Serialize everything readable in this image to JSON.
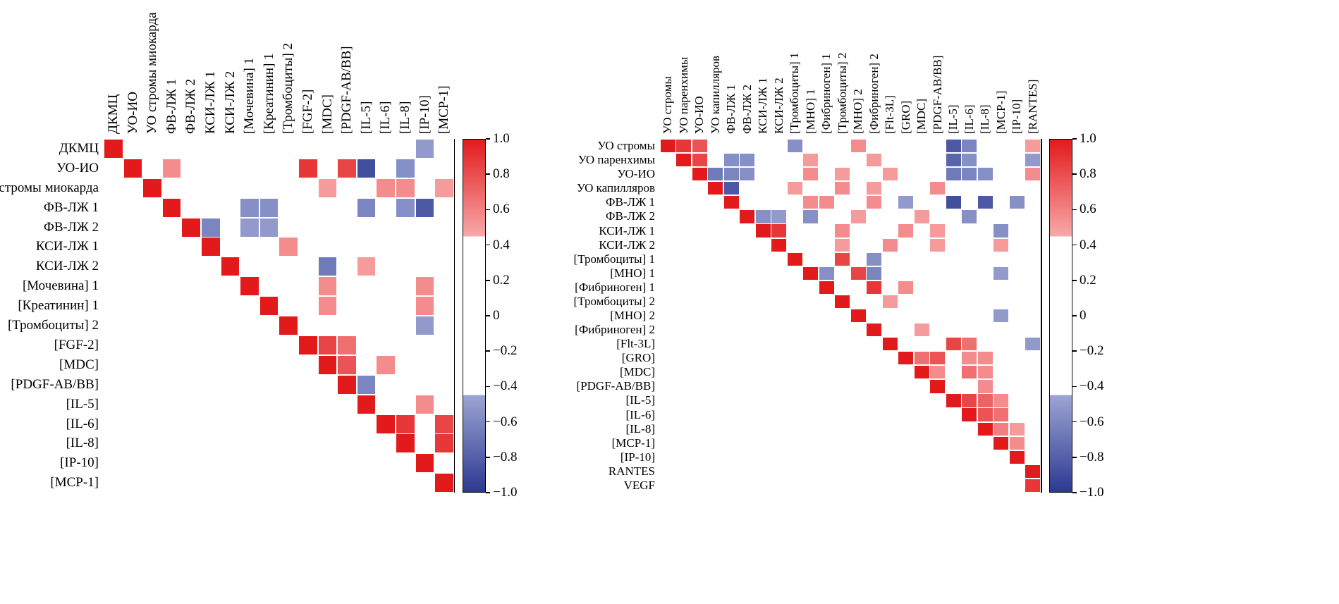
{
  "colors": {
    "positive_strong": "#e31a1c",
    "positive_weak": "#f8a9a9",
    "negative_weak": "#9da5d3",
    "negative_strong": "#2b3990",
    "background": "#ffffff",
    "frame": "#000000"
  },
  "colorbar": {
    "max": 1.0,
    "min": -1.0,
    "positive_threshold": 0.45,
    "negative_threshold": -0.45,
    "ticks": [
      "1.0",
      "0.8",
      "0.6",
      "0.4",
      "0.2",
      "0",
      "−0.2",
      "−0.4",
      "−0.6",
      "−0.8",
      "−1.0"
    ]
  },
  "chart_data": [
    {
      "type": "heatmap",
      "panel": "left",
      "title": "",
      "legend_position": "right-colorbar",
      "grid": false,
      "value_range": [
        -1,
        1
      ],
      "diagonal_value": 1.0,
      "variables": [
        "ДКМЦ",
        "УО-ИО",
        "УО стромы миокарда",
        "ФВ-ЛЖ 1",
        "ФВ-ЛЖ 2",
        "КСИ-ЛЖ 1",
        "КСИ-ЛЖ 2",
        "[Мочевина] 1",
        "[Креатинин] 1",
        "[Тромбоциты] 2",
        "[FGF-2]",
        "[MDC]",
        "[PDGF-AB/BB]",
        "[IL-5]",
        "[IL-6]",
        "[IL-8]",
        "[IP-10]",
        "[MCP-1]"
      ],
      "cells": [
        [
          0,
          16,
          -0.55
        ],
        [
          1,
          3,
          0.6
        ],
        [
          1,
          10,
          0.9
        ],
        [
          1,
          12,
          0.85
        ],
        [
          1,
          13,
          -0.9
        ],
        [
          1,
          15,
          -0.6
        ],
        [
          2,
          11,
          0.55
        ],
        [
          2,
          14,
          0.6
        ],
        [
          2,
          15,
          0.6
        ],
        [
          2,
          17,
          0.55
        ],
        [
          3,
          7,
          -0.6
        ],
        [
          3,
          8,
          -0.6
        ],
        [
          3,
          13,
          -0.65
        ],
        [
          3,
          15,
          -0.6
        ],
        [
          3,
          16,
          -0.85
        ],
        [
          4,
          5,
          -0.65
        ],
        [
          4,
          7,
          -0.55
        ],
        [
          4,
          8,
          -0.55
        ],
        [
          5,
          9,
          0.6
        ],
        [
          6,
          11,
          -0.7
        ],
        [
          6,
          13,
          0.55
        ],
        [
          7,
          11,
          0.6
        ],
        [
          7,
          16,
          0.6
        ],
        [
          8,
          11,
          0.6
        ],
        [
          8,
          16,
          0.6
        ],
        [
          9,
          16,
          -0.55
        ],
        [
          10,
          11,
          0.85
        ],
        [
          10,
          12,
          0.7
        ],
        [
          11,
          12,
          0.8
        ],
        [
          11,
          14,
          0.6
        ],
        [
          12,
          13,
          -0.65
        ],
        [
          13,
          16,
          0.6
        ],
        [
          14,
          15,
          0.9
        ],
        [
          14,
          17,
          0.85
        ],
        [
          15,
          17,
          0.9
        ]
      ]
    },
    {
      "type": "heatmap",
      "panel": "right",
      "title": "",
      "legend_position": "right-colorbar",
      "grid": false,
      "value_range": [
        -1,
        1
      ],
      "diagonal_value": 1.0,
      "row_variables": [
        "УО стромы",
        "УО паренхимы",
        "УО-ИО",
        "УО капилляров",
        "ФВ-ЛЖ 1",
        "ФВ-ЛЖ 2",
        "КСИ-ЛЖ 1",
        "КСИ-ЛЖ 2",
        "[Тромбоциты] 1",
        "[МНО] 1",
        "[Фибриноген] 1",
        "[Тромбоциты] 2",
        "[МНО] 2",
        "[Фибриноген] 2",
        "[Flt-3L]",
        "[GRO]",
        "[MDC]",
        "[PDGF-AB/BB]",
        "[IL-5]",
        "[IL-6]",
        "[IL-8]",
        "[MCP-1]",
        "[IP-10]",
        "RANTES",
        "VEGF"
      ],
      "column_variables": [
        "УО стромы",
        "УО паренхимы",
        "УО-ИО",
        "УО капилляров",
        "ФВ-ЛЖ 1",
        "ФВ-ЛЖ 2",
        "КСИ-ЛЖ 1",
        "КСИ-ЛЖ 2",
        "[Тромбоциты] 1",
        "[МНО] 1",
        "[Фибриноген] 1",
        "[Тромбоциты] 2",
        "[МНО] 2",
        "[Фибриноген] 2",
        "[Flt-3L]",
        "[GRO]",
        "[MDC]",
        "[PDGF-AB/BB]",
        "[IL-5]",
        "[IL-6]",
        "[IL-8]",
        "[MCP-1]",
        "[IP-10]",
        "[RANTES]"
      ],
      "cells": [
        [
          0,
          1,
          0.9
        ],
        [
          0,
          2,
          0.8
        ],
        [
          0,
          8,
          -0.6
        ],
        [
          0,
          12,
          0.6
        ],
        [
          0,
          18,
          -0.85
        ],
        [
          0,
          19,
          -0.65
        ],
        [
          0,
          23,
          0.55
        ],
        [
          1,
          2,
          0.85
        ],
        [
          1,
          4,
          -0.6
        ],
        [
          1,
          5,
          -0.6
        ],
        [
          1,
          9,
          0.55
        ],
        [
          1,
          13,
          0.55
        ],
        [
          1,
          18,
          -0.8
        ],
        [
          1,
          19,
          -0.6
        ],
        [
          1,
          23,
          -0.55
        ],
        [
          2,
          3,
          -0.7
        ],
        [
          2,
          4,
          -0.65
        ],
        [
          2,
          5,
          -0.6
        ],
        [
          2,
          9,
          0.6
        ],
        [
          2,
          11,
          0.55
        ],
        [
          2,
          14,
          0.55
        ],
        [
          2,
          18,
          -0.7
        ],
        [
          2,
          19,
          -0.65
        ],
        [
          2,
          20,
          -0.6
        ],
        [
          2,
          23,
          0.6
        ],
        [
          3,
          4,
          -0.85
        ],
        [
          3,
          8,
          0.55
        ],
        [
          3,
          11,
          0.6
        ],
        [
          3,
          13,
          0.55
        ],
        [
          3,
          17,
          0.6
        ],
        [
          4,
          9,
          0.6
        ],
        [
          4,
          10,
          0.6
        ],
        [
          4,
          13,
          0.6
        ],
        [
          4,
          15,
          -0.55
        ],
        [
          4,
          18,
          -0.9
        ],
        [
          4,
          20,
          -0.85
        ],
        [
          4,
          22,
          -0.6
        ],
        [
          5,
          6,
          -0.6
        ],
        [
          5,
          7,
          -0.55
        ],
        [
          5,
          9,
          -0.6
        ],
        [
          5,
          12,
          0.55
        ],
        [
          5,
          16,
          0.55
        ],
        [
          5,
          19,
          -0.6
        ],
        [
          6,
          7,
          0.9
        ],
        [
          6,
          11,
          0.6
        ],
        [
          6,
          15,
          0.6
        ],
        [
          6,
          17,
          0.55
        ],
        [
          6,
          21,
          -0.6
        ],
        [
          7,
          11,
          0.55
        ],
        [
          7,
          14,
          0.6
        ],
        [
          7,
          17,
          0.55
        ],
        [
          7,
          21,
          0.55
        ],
        [
          8,
          11,
          0.85
        ],
        [
          8,
          13,
          -0.6
        ],
        [
          9,
          10,
          -0.6
        ],
        [
          9,
          12,
          0.85
        ],
        [
          9,
          13,
          -0.65
        ],
        [
          9,
          21,
          -0.55
        ],
        [
          10,
          13,
          0.9
        ],
        [
          10,
          15,
          0.6
        ],
        [
          11,
          14,
          0.55
        ],
        [
          12,
          21,
          -0.55
        ],
        [
          13,
          16,
          0.55
        ],
        [
          14,
          18,
          0.85
        ],
        [
          14,
          19,
          0.7
        ],
        [
          14,
          23,
          -0.55
        ],
        [
          15,
          16,
          0.7
        ],
        [
          15,
          17,
          0.8
        ],
        [
          15,
          19,
          0.6
        ],
        [
          15,
          20,
          0.6
        ],
        [
          16,
          17,
          0.6
        ],
        [
          16,
          19,
          0.7
        ],
        [
          16,
          20,
          0.6
        ],
        [
          17,
          20,
          0.6
        ],
        [
          18,
          19,
          0.85
        ],
        [
          18,
          20,
          0.75
        ],
        [
          18,
          21,
          0.6
        ],
        [
          19,
          20,
          0.8
        ],
        [
          19,
          21,
          0.7
        ],
        [
          20,
          21,
          0.65
        ],
        [
          20,
          22,
          0.55
        ],
        [
          21,
          22,
          0.6
        ],
        [
          24,
          23,
          0.9
        ]
      ]
    }
  ]
}
